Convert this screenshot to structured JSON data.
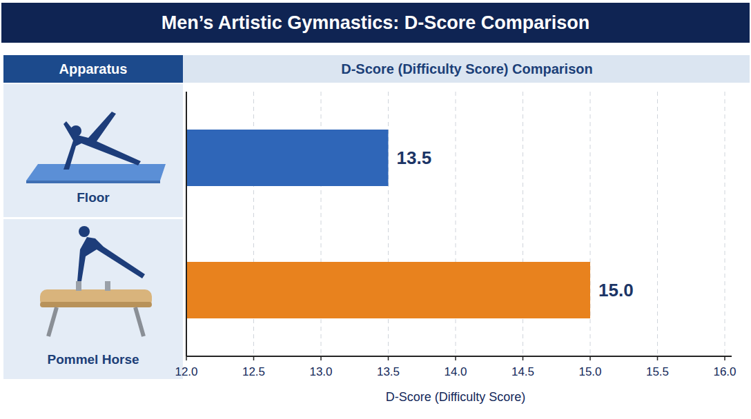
{
  "chart_data": {
    "type": "bar",
    "orientation": "horizontal",
    "title": "Men’s Artistic Gymnastics: D-Score Comparison",
    "subtitle": "D-Score (Difficulty Score) Comparison",
    "y_label": "Apparatus",
    "x_label": "D-Score (Difficulty Score)",
    "categories": [
      "Floor",
      "Pommel Horse"
    ],
    "values": [
      13.5,
      15.0
    ],
    "value_labels": [
      "13.5",
      "15.0"
    ],
    "colors": [
      "#2f66b8",
      "#e8821e"
    ],
    "data_labels": true,
    "grid": true,
    "xlim": [
      12,
      16
    ],
    "xticks": [
      {
        "value": 12,
        "label": "12.0"
      },
      12.5,
      {
        "value": 13,
        "label": "13.0"
      },
      13.5,
      {
        "value": 14,
        "label": "14.0"
      },
      14.5,
      {
        "value": 15,
        "label": "15.0"
      },
      15.5,
      {
        "value": 16,
        "label": "16.0"
      }
    ]
  }
}
